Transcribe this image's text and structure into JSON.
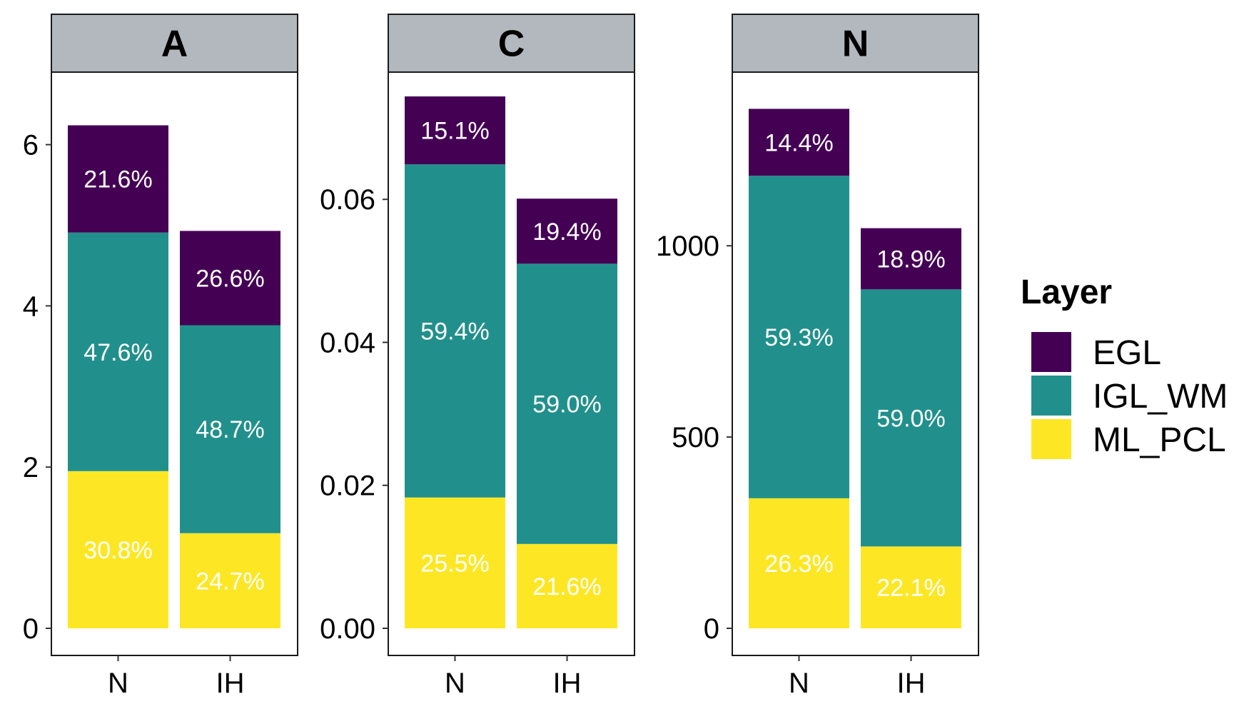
{
  "chart_data": [
    {
      "type": "bar",
      "stacked": true,
      "title": "A",
      "categories": [
        "N",
        "IH"
      ],
      "ylim": [
        0,
        6.9
      ],
      "y_ticks": [
        0,
        2,
        4,
        6
      ],
      "y_tick_labels": [
        "0",
        "2",
        "4",
        "6"
      ],
      "series": [
        {
          "name": "ML_PCL",
          "values": [
            1.95,
            1.18
          ],
          "labels": [
            "30.8%",
            "24.7%"
          ]
        },
        {
          "name": "IGL_WM",
          "values": [
            2.96,
            2.58
          ],
          "labels": [
            "47.6%",
            "48.7%"
          ]
        },
        {
          "name": "EGL",
          "values": [
            1.33,
            1.17
          ],
          "labels": [
            "21.6%",
            "26.6%"
          ]
        }
      ]
    },
    {
      "type": "bar",
      "stacked": true,
      "title": "C",
      "categories": [
        "N",
        "IH"
      ],
      "ylim": [
        0,
        0.0778
      ],
      "y_ticks": [
        0,
        0.02,
        0.04,
        0.06
      ],
      "y_tick_labels": [
        "0.00",
        "0.02",
        "0.04",
        "0.06"
      ],
      "series": [
        {
          "name": "ML_PCL",
          "values": [
            0.0183,
            0.0118
          ],
          "labels": [
            "25.5%",
            "21.6%"
          ]
        },
        {
          "name": "IGL_WM",
          "values": [
            0.0466,
            0.0392
          ],
          "labels": [
            "59.4%",
            "59.0%"
          ]
        },
        {
          "name": "EGL",
          "values": [
            0.0095,
            0.0091
          ],
          "labels": [
            "15.1%",
            "19.4%"
          ]
        }
      ]
    },
    {
      "type": "bar",
      "stacked": true,
      "title": "N",
      "categories": [
        "N",
        "IH"
      ],
      "ylim": [
        0,
        1454
      ],
      "y_ticks": [
        0,
        500,
        1000
      ],
      "y_tick_labels": [
        "0",
        "500",
        "1000"
      ],
      "series": [
        {
          "name": "ML_PCL",
          "values": [
            340,
            214
          ],
          "labels": [
            "26.3%",
            "22.1%"
          ]
        },
        {
          "name": "IGL_WM",
          "values": [
            843,
            672
          ],
          "labels": [
            "59.3%",
            "59.0%"
          ]
        },
        {
          "name": "EGL",
          "values": [
            175,
            160
          ],
          "labels": [
            "14.4%",
            "18.9%"
          ]
        }
      ]
    }
  ],
  "legend": {
    "title": "Layer",
    "placement": "right",
    "items": [
      {
        "label": "EGL",
        "color": "#440154"
      },
      {
        "label": "IGL_WM",
        "color": "#21908C"
      },
      {
        "label": "ML_PCL",
        "color": "#FDE725"
      }
    ]
  },
  "colors": {
    "strip_background": "#B3B8BE",
    "EGL": "#440154",
    "IGL_WM": "#21908C",
    "ML_PCL": "#FDE725"
  }
}
